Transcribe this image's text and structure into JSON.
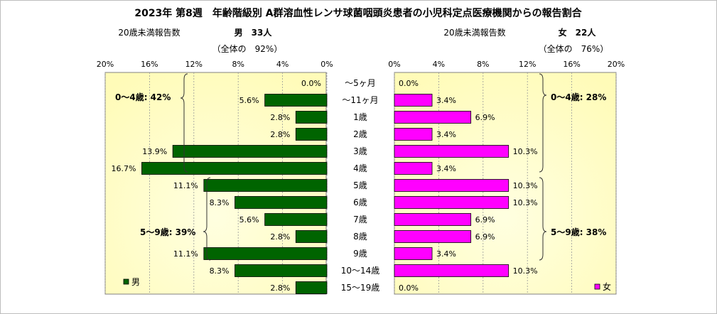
{
  "title": "2023年 第8週　年齢階級別 A群溶血性レンサ球菌咽頭炎患者の小児科定点医療機関からの報告割合",
  "male": {
    "under20_label": "20歳未満報告数",
    "sex_count": "男　33人",
    "share": "（全体の　92%）",
    "group1_label": "0～4歳: 42%",
    "group2_label": "5～9歳: 39%",
    "legend": "男",
    "color": "#006400"
  },
  "female": {
    "under20_label": "20歳未満報告数",
    "sex_count": "女　22人",
    "share": "（全体の　76%）",
    "group1_label": "0～4歳: 28%",
    "group2_label": "5～9歳: 38%",
    "legend": "女",
    "color": "#ff00ff"
  },
  "chart_data": [
    {
      "type": "bar",
      "orientation": "horizontal-reversed",
      "title": "",
      "series": [
        {
          "name": "男",
          "values": [
            0.0,
            5.6,
            2.8,
            2.8,
            13.9,
            16.7,
            11.1,
            8.3,
            5.6,
            2.8,
            11.1,
            8.3,
            2.8
          ]
        }
      ],
      "categories": [
        "～5ヶ月",
        "～11ヶ月",
        "1歳",
        "2歳",
        "3歳",
        "4歳",
        "5歳",
        "6歳",
        "7歳",
        "8歳",
        "9歳",
        "10～14歳",
        "15～19歳"
      ],
      "labels": [
        "0.0%",
        "5.6%",
        "2.8%",
        "2.8%",
        "13.9%",
        "16.7%",
        "11.1%",
        "8.3%",
        "5.6%",
        "2.8%",
        "11.1%",
        "8.3%",
        "2.8%"
      ],
      "xlim": [
        0,
        20
      ],
      "ticks": [
        "20%",
        "16%",
        "12%",
        "8%",
        "4%",
        "0%"
      ],
      "legend_position": "bottom-left"
    },
    {
      "type": "bar",
      "orientation": "horizontal",
      "title": "",
      "series": [
        {
          "name": "女",
          "values": [
            0.0,
            3.4,
            6.9,
            3.4,
            10.3,
            3.4,
            10.3,
            10.3,
            6.9,
            6.9,
            3.4,
            10.3,
            0.0
          ]
        }
      ],
      "categories": [
        "～5ヶ月",
        "～11ヶ月",
        "1歳",
        "2歳",
        "3歳",
        "4歳",
        "5歳",
        "6歳",
        "7歳",
        "8歳",
        "9歳",
        "10～14歳",
        "15～19歳"
      ],
      "labels": [
        "0.0%",
        "3.4%",
        "6.9%",
        "3.4%",
        "10.3%",
        "3.4%",
        "10.3%",
        "10.3%",
        "6.9%",
        "6.9%",
        "3.4%",
        "10.3%",
        "0.0%"
      ],
      "xlim": [
        0,
        20
      ],
      "ticks": [
        "0%",
        "4%",
        "8%",
        "12%",
        "16%",
        "20%"
      ],
      "legend_position": "bottom-right"
    }
  ]
}
